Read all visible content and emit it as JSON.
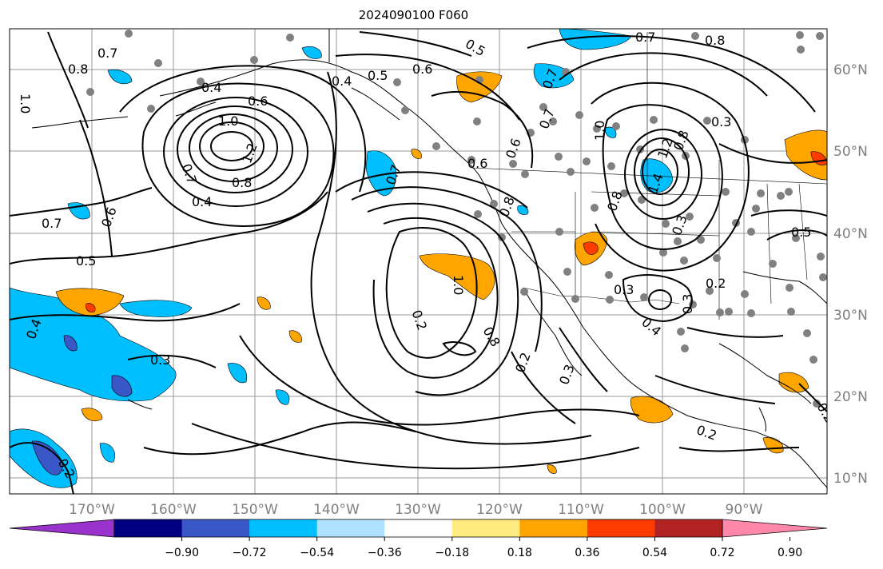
{
  "title": "2024090100 F060",
  "lon_labels": [
    "170°W",
    "160°W",
    "150°W",
    "140°W",
    "130°W",
    "120°W",
    "110°W",
    "100°W",
    "90°W"
  ],
  "lat_labels": [
    "60°N",
    "50°N",
    "40°N",
    "30°N",
    "20°N",
    "10°N"
  ],
  "colorbar": {
    "tick_labels": [
      "−0.90",
      "−0.72",
      "−0.54",
      "−0.36",
      "−0.18",
      "0.18",
      "0.36",
      "0.54",
      "0.72",
      "0.90"
    ],
    "colors": [
      "#9933cc",
      "#000080",
      "#3a57c8",
      "#00bfff",
      "#aee2ff",
      "#ffffff",
      "#ffeb80",
      "#ffa500",
      "#ff3c00",
      "#b22222",
      "#ff88aa"
    ]
  },
  "contour_labels": [
    {
      "text": "0.8"
    },
    {
      "text": "0.7"
    },
    {
      "text": "1.0"
    },
    {
      "text": "0.4"
    },
    {
      "text": "0.6"
    },
    {
      "text": "1.0"
    },
    {
      "text": "1.2"
    },
    {
      "text": "0.8"
    },
    {
      "text": "0.7"
    },
    {
      "text": "0.4"
    },
    {
      "text": "0.7"
    },
    {
      "text": "0.6"
    },
    {
      "text": "0.5"
    },
    {
      "text": "0.4"
    },
    {
      "text": "0.3"
    },
    {
      "text": "0.2"
    },
    {
      "text": "0.4"
    },
    {
      "text": "0.5"
    },
    {
      "text": "0.6"
    },
    {
      "text": "0.5"
    },
    {
      "text": "0.7"
    },
    {
      "text": "0.8"
    },
    {
      "text": "0.7"
    },
    {
      "text": "0.6"
    },
    {
      "text": "1.0"
    },
    {
      "text": "0.8"
    },
    {
      "text": "0.2"
    },
    {
      "text": "0.3"
    },
    {
      "text": "0.2"
    },
    {
      "text": "0.7"
    },
    {
      "text": "0.8"
    },
    {
      "text": "1.0"
    },
    {
      "text": "1.2"
    },
    {
      "text": "1.4"
    },
    {
      "text": "0.8"
    },
    {
      "text": "0.3"
    },
    {
      "text": "0.3"
    },
    {
      "text": "0.5"
    },
    {
      "text": "0.3"
    },
    {
      "text": "0.4"
    },
    {
      "text": "0.2"
    },
    {
      "text": "0.3"
    },
    {
      "text": "0.2"
    },
    {
      "text": "0.2"
    },
    {
      "text": "0.8"
    },
    {
      "text": "0.7"
    },
    {
      "text": "0.6"
    }
  ]
}
